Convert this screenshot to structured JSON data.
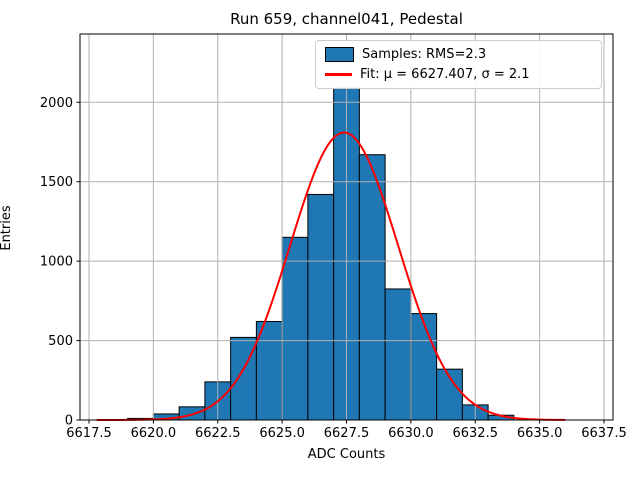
{
  "title": "Run 659, channel041, Pedestal",
  "axes": {
    "xlabel": "ADC Counts",
    "ylabel": "Entries"
  },
  "legend": {
    "entries": [
      {
        "label": "Samples: RMS=2.3",
        "marker": "patch"
      },
      {
        "label": "Fit: μ = 6627.407, σ = 2.1",
        "marker": "line"
      }
    ]
  },
  "colors": {
    "bar_fill": "#1f77b4",
    "bar_edge": "#000000",
    "fit_line": "#ff0000",
    "grid": "#b0b0b0",
    "spine": "#000000",
    "text": "#000000",
    "background": "#ffffff"
  },
  "chart_data": {
    "type": "bar",
    "subtype": "histogram",
    "title": "Run 659, channel041, Pedestal",
    "xlabel": "ADC Counts",
    "ylabel": "Entries",
    "bin_edges": [
      6619,
      6620,
      6621,
      6622,
      6623,
      6624,
      6625,
      6626,
      6627,
      6628,
      6629,
      6630,
      6631,
      6632,
      6633,
      6634
    ],
    "counts": [
      10,
      38,
      83,
      240,
      520,
      620,
      1150,
      1420,
      2090,
      1670,
      825,
      670,
      320,
      95,
      30
    ],
    "fit": {
      "mu": 6627.407,
      "sigma": 2.1,
      "amplitude": 1810,
      "x_start": 6617.8,
      "x_end": 6636.0
    },
    "x_ticks": [
      6617.5,
      6620.0,
      6622.5,
      6625.0,
      6627.5,
      6630.0,
      6632.5,
      6635.0,
      6637.5
    ],
    "x_tick_labels": [
      "6617.5",
      "6620.0",
      "6622.5",
      "6625.0",
      "6627.5",
      "6630.0",
      "6632.5",
      "6635.0",
      "6637.5"
    ],
    "y_ticks": [
      0,
      500,
      1000,
      1500,
      2000
    ],
    "y_tick_labels": [
      "0",
      "500",
      "1000",
      "1500",
      "2000"
    ],
    "xlim": [
      6617.15,
      6637.85
    ],
    "ylim": [
      0,
      2430
    ],
    "grid": true,
    "legend_position": "upper right"
  }
}
